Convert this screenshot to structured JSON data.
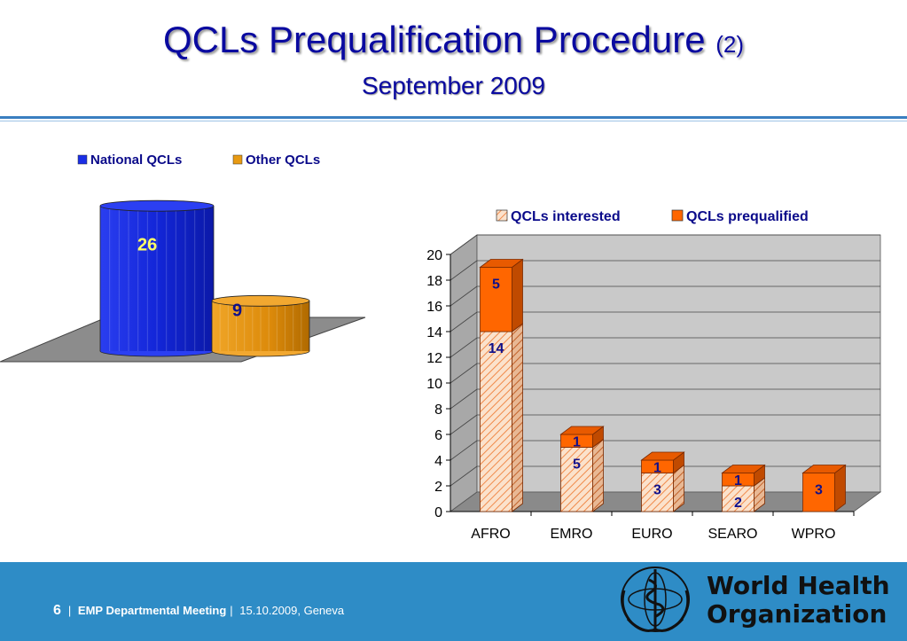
{
  "slide": {
    "title_main": "QCLs Prequalification Procedure",
    "title_suffix": "(2)",
    "subtitle": "September 2009"
  },
  "footer": {
    "page": "6",
    "meeting": "EMP Departmental Meeting",
    "date_place": "15.10.2009, Geneva",
    "org_line1": "World Health",
    "org_line2": "Organization",
    "logo_icon": "who-emblem-icon"
  },
  "colors": {
    "title": "#0a0aa0",
    "national": "#1a2ee6",
    "other": "#e89a12",
    "interested": "#f5c79e",
    "prequalified": "#ff6600",
    "footer": "#2e8cc6"
  },
  "chart_data": [
    {
      "type": "bar",
      "style": "3d-cylinder",
      "categories": [
        "National QCLs",
        "Other QCLs"
      ],
      "values": [
        26,
        9
      ],
      "legend": [
        "National QCLs",
        "Other QCLs"
      ],
      "legend_position": "top",
      "data_labels": [
        "26",
        "9"
      ]
    },
    {
      "type": "bar",
      "style": "3d-stacked",
      "categories": [
        "AFRO",
        "EMRO",
        "EURO",
        "SEARO",
        "WPRO"
      ],
      "series": [
        {
          "name": "QCLs interested",
          "values": [
            14,
            5,
            3,
            2,
            0
          ]
        },
        {
          "name": "QCLs prequalified",
          "values": [
            5,
            1,
            1,
            1,
            3
          ]
        }
      ],
      "ylim": [
        0,
        20
      ],
      "yticks": [
        "0",
        "2",
        "4",
        "6",
        "8",
        "10",
        "12",
        "14",
        "16",
        "18",
        "20"
      ],
      "grid": true,
      "legend_position": "top"
    }
  ]
}
